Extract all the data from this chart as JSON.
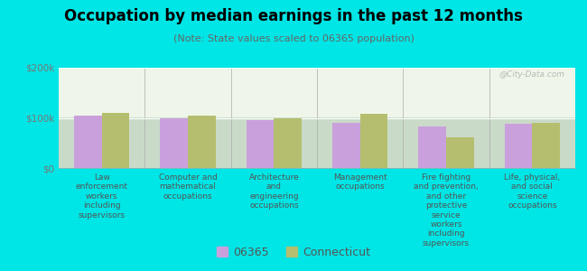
{
  "title": "Occupation by median earnings in the past 12 months",
  "subtitle": "(Note: State values scaled to 06365 population)",
  "background_color": "#00e5e5",
  "plot_bg_top": "#d8ecc8",
  "plot_bg_bottom": "#eef5e8",
  "categories": [
    "Law\nenforcement\nworkers\nincluding\nsupervisors",
    "Computer and\nmathematical\noccupations",
    "Architecture\nand\nengineering\noccupations",
    "Management\noccupations",
    "Fire fighting\nand prevention,\nand other\nprotective\nservice\nworkers\nincluding\nsupervisors",
    "Life, physical,\nand social\nscience\noccupations"
  ],
  "values_06365": [
    105000,
    100000,
    95000,
    90000,
    83000,
    88000
  ],
  "values_connecticut": [
    110000,
    105000,
    100000,
    108000,
    62000,
    90000
  ],
  "color_06365": "#c9a0dc",
  "color_connecticut": "#b5be6e",
  "ylim": [
    0,
    200000
  ],
  "yticks": [
    0,
    100000,
    200000
  ],
  "ytick_labels": [
    "$0",
    "$100k",
    "$200k"
  ],
  "legend_label_06365": "06365",
  "legend_label_ct": "Connecticut",
  "bar_width": 0.32,
  "watermark": "@City-Data.com"
}
